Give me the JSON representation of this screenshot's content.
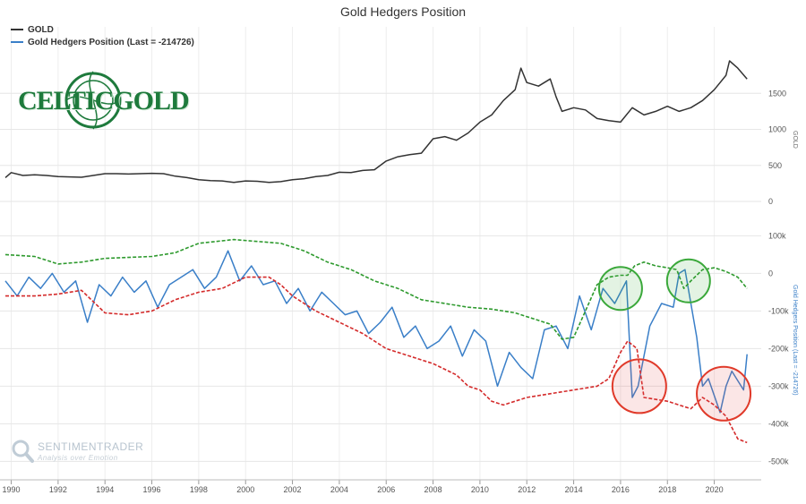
{
  "chart_data": {
    "type": "line",
    "title": "Gold Hedgers Position",
    "legend": [
      {
        "name": "GOLD",
        "color": "#333333"
      },
      {
        "name": "Gold Hedgers Position (Last = -214726)",
        "color": "#3a7fc8"
      }
    ],
    "x_ticks": [
      "1990",
      "1992",
      "1994",
      "1996",
      "1998",
      "2000",
      "2002",
      "2004",
      "2006",
      "2008",
      "2010",
      "2012",
      "2014",
      "2016",
      "2018",
      "2020"
    ],
    "panels": [
      {
        "name": "gold-price",
        "ylabel": "GOLD",
        "ylim": [
          0,
          2000
        ],
        "y_ticks": [
          {
            "value": 0,
            "label": "0"
          },
          {
            "value": 500,
            "label": "500"
          },
          {
            "value": 1000,
            "label": "1000"
          },
          {
            "value": 1500,
            "label": "1500"
          }
        ],
        "series": [
          {
            "name": "GOLD",
            "color": "#333333",
            "x": [
              1989.75,
              1990,
              1990.5,
              1991,
              1991.5,
              1992,
              1992.5,
              1993,
              1993.5,
              1994,
              1994.5,
              1995,
              1995.5,
              1996,
              1996.5,
              1997,
              1997.5,
              1998,
              1998.5,
              1999,
              1999.5,
              2000,
              2000.5,
              2001,
              2001.5,
              2002,
              2002.5,
              2003,
              2003.5,
              2004,
              2004.5,
              2005,
              2005.5,
              2006,
              2006.5,
              2007,
              2007.5,
              2008,
              2008.5,
              2009,
              2009.5,
              2010,
              2010.5,
              2011,
              2011.5,
              2011.75,
              2012,
              2012.5,
              2013,
              2013.25,
              2013.5,
              2014,
              2014.5,
              2015,
              2015.5,
              2016,
              2016.5,
              2017,
              2017.5,
              2018,
              2018.5,
              2019,
              2019.5,
              2020,
              2020.5,
              2020.65,
              2021,
              2021.4
            ],
            "y": [
              330,
              400,
              360,
              370,
              360,
              345,
              340,
              335,
              360,
              385,
              385,
              380,
              385,
              390,
              385,
              350,
              330,
              300,
              290,
              285,
              265,
              285,
              280,
              265,
              275,
              300,
              315,
              345,
              360,
              405,
              400,
              430,
              440,
              560,
              620,
              650,
              670,
              870,
              900,
              850,
              950,
              1100,
              1200,
              1400,
              1550,
              1850,
              1650,
              1600,
              1700,
              1450,
              1250,
              1300,
              1270,
              1150,
              1120,
              1100,
              1300,
              1200,
              1250,
              1320,
              1250,
              1300,
              1400,
              1550,
              1750,
              1950,
              1850,
              1700
            ]
          }
        ]
      },
      {
        "name": "hedgers-position",
        "ylabel": "Gold Hedgers Position (Last = -214726)",
        "ylim": [
          -530000,
          120000
        ],
        "y_ticks": [
          {
            "value": 100000,
            "label": "100k"
          },
          {
            "value": 0,
            "label": "0"
          },
          {
            "value": -100000,
            "label": "-100k"
          },
          {
            "value": -200000,
            "label": "-200k"
          },
          {
            "value": -300000,
            "label": "-300k"
          },
          {
            "value": -400000,
            "label": "-400k"
          },
          {
            "value": -500000,
            "label": "-500k"
          }
        ],
        "series": [
          {
            "name": "Gold Hedgers Position (Last = -214726)",
            "color": "#3a7fc8",
            "x": [
              1989.75,
              1990.25,
              1990.75,
              1991.25,
              1991.75,
              1992.25,
              1992.75,
              1993.25,
              1993.75,
              1994.25,
              1994.75,
              1995.25,
              1995.75,
              1996.25,
              1996.75,
              1997.25,
              1997.75,
              1998.25,
              1998.75,
              1999.25,
              1999.75,
              2000.25,
              2000.75,
              2001.25,
              2001.75,
              2002.25,
              2002.75,
              2003.25,
              2003.75,
              2004.25,
              2004.75,
              2005.25,
              2005.75,
              2006.25,
              2006.75,
              2007.25,
              2007.75,
              2008.25,
              2008.75,
              2009.25,
              2009.75,
              2010.25,
              2010.75,
              2011.25,
              2011.75,
              2012.25,
              2012.75,
              2013.25,
              2013.75,
              2014.25,
              2014.75,
              2015.25,
              2015.75,
              2016.25,
              2016.5,
              2016.75,
              2017.25,
              2017.75,
              2018.25,
              2018.5,
              2018.75,
              2019.25,
              2019.5,
              2019.75,
              2020.25,
              2020.5,
              2020.75,
              2021.25,
              2021.4
            ],
            "y": [
              -20000,
              -60000,
              -10000,
              -40000,
              0,
              -50000,
              -20000,
              -130000,
              -30000,
              -60000,
              -10000,
              -50000,
              -20000,
              -90000,
              -30000,
              -10000,
              10000,
              -40000,
              -10000,
              60000,
              -20000,
              20000,
              -30000,
              -20000,
              -80000,
              -40000,
              -100000,
              -50000,
              -80000,
              -110000,
              -100000,
              -160000,
              -130000,
              -90000,
              -170000,
              -140000,
              -200000,
              -180000,
              -140000,
              -220000,
              -150000,
              -180000,
              -300000,
              -210000,
              -250000,
              -280000,
              -150000,
              -140000,
              -200000,
              -60000,
              -150000,
              -40000,
              -80000,
              -20000,
              -330000,
              -300000,
              -140000,
              -80000,
              -90000,
              0,
              10000,
              -170000,
              -300000,
              -280000,
              -370000,
              -300000,
              -260000,
              -310000,
              -215000
            ]
          },
          {
            "name": "upper band",
            "color": "#2e9a2e",
            "dashed": true,
            "x": [
              1989.75,
              1991,
              1992,
              1993,
              1994,
              1996,
              1997,
              1998,
              1999.5,
              2000.5,
              2001.5,
              2002.5,
              2003.5,
              2004.5,
              2005.5,
              2006.5,
              2007.5,
              2008.5,
              2009.5,
              2010.5,
              2011.5,
              2012.5,
              2013,
              2013.5,
              2014,
              2014.5,
              2015,
              2015.5,
              2016,
              2016.3,
              2016.6,
              2017,
              2017.5,
              2018,
              2018.4,
              2018.7,
              2019,
              2019.5,
              2020,
              2020.5,
              2021,
              2021.4
            ],
            "y": [
              50000,
              45000,
              25000,
              30000,
              40000,
              45000,
              55000,
              80000,
              90000,
              85000,
              80000,
              60000,
              30000,
              10000,
              -20000,
              -40000,
              -70000,
              -80000,
              -90000,
              -95000,
              -105000,
              -125000,
              -135000,
              -175000,
              -170000,
              -100000,
              -30000,
              -10000,
              -5000,
              -5000,
              20000,
              30000,
              20000,
              15000,
              10000,
              -40000,
              -20000,
              10000,
              15000,
              5000,
              -10000,
              -40000
            ]
          },
          {
            "name": "lower band",
            "color": "#d42b2b",
            "dashed": true,
            "x": [
              1989.75,
              1991,
              1992,
              1993,
              1994,
              1995,
              1996,
              1997,
              1998,
              1999,
              2000,
              2001,
              2001.5,
              2002,
              2003,
              2004,
              2005,
              2006,
              2007,
              2008,
              2009,
              2009.5,
              2010,
              2010.5,
              2011,
              2012,
              2013,
              2014,
              2015,
              2015.5,
              2016,
              2016.3,
              2016.7,
              2017,
              2018,
              2019,
              2019.5,
              2020,
              2020.5,
              2021,
              2021.4
            ],
            "y": [
              -60000,
              -60000,
              -55000,
              -45000,
              -105000,
              -110000,
              -100000,
              -70000,
              -50000,
              -40000,
              -10000,
              -10000,
              -30000,
              -60000,
              -100000,
              -130000,
              -160000,
              -200000,
              -220000,
              -240000,
              -270000,
              -300000,
              -310000,
              -340000,
              -350000,
              -330000,
              -320000,
              -310000,
              -300000,
              -280000,
              -210000,
              -180000,
              -200000,
              -330000,
              -340000,
              -360000,
              -330000,
              -350000,
              -380000,
              -440000,
              -450000
            ]
          }
        ]
      }
    ],
    "annotations": [
      {
        "shape": "circle",
        "color": "green",
        "panel": "hedgers-position",
        "x": 2016.0,
        "y": -40000
      },
      {
        "shape": "circle",
        "color": "green",
        "panel": "hedgers-position",
        "x": 2018.9,
        "y": -20000
      },
      {
        "shape": "circle",
        "color": "red",
        "panel": "hedgers-position",
        "x": 2016.8,
        "y": -300000
      },
      {
        "shape": "circle",
        "color": "red",
        "panel": "hedgers-position",
        "x": 2020.4,
        "y": -320000
      }
    ]
  },
  "logos": {
    "celticgold": "CELTICGOLD",
    "sentimentrader_name": "SENTIMENTRADER",
    "sentimentrader_tag": "Analysis over Emotion"
  }
}
